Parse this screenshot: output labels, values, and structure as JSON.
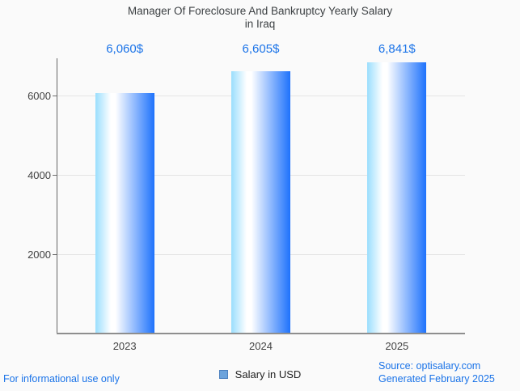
{
  "title": {
    "line1": "Manager Of Foreclosure And Bankruptcy Yearly Salary",
    "line2": "in Iraq"
  },
  "chart_data": {
    "type": "bar",
    "title": "Manager Of Foreclosure And Bankruptcy Yearly Salary in Iraq",
    "categories": [
      "2023",
      "2024",
      "2025"
    ],
    "series": [
      {
        "name": "Salary in USD",
        "values": [
          6060,
          6605,
          6841
        ]
      }
    ],
    "value_labels": [
      "6,060$",
      "6,605$",
      "6,841$"
    ],
    "xlabel": "",
    "ylabel": "",
    "ylim": [
      0,
      6939
    ],
    "yticks": [
      2000,
      4000,
      6000
    ],
    "grid": true,
    "legend_position": "bottom-center",
    "colors": {
      "bar_gradient_left": "#9ADEFD",
      "bar_gradient_mid": "#FFFFFF",
      "bar_gradient_right": "#1E72FC",
      "value_label": "#1A73E8",
      "axis_label": "#424242",
      "gridline": "#E4E4E4"
    }
  },
  "legend": {
    "label": "Salary in USD",
    "swatch_color": "#6CA3DC",
    "swatch_border": "#4A7FBE"
  },
  "footer": {
    "left": "For informational use only",
    "source": "Source: optisalary.com",
    "generated": "Generated February 2025",
    "link_color": "#1A73E8"
  }
}
